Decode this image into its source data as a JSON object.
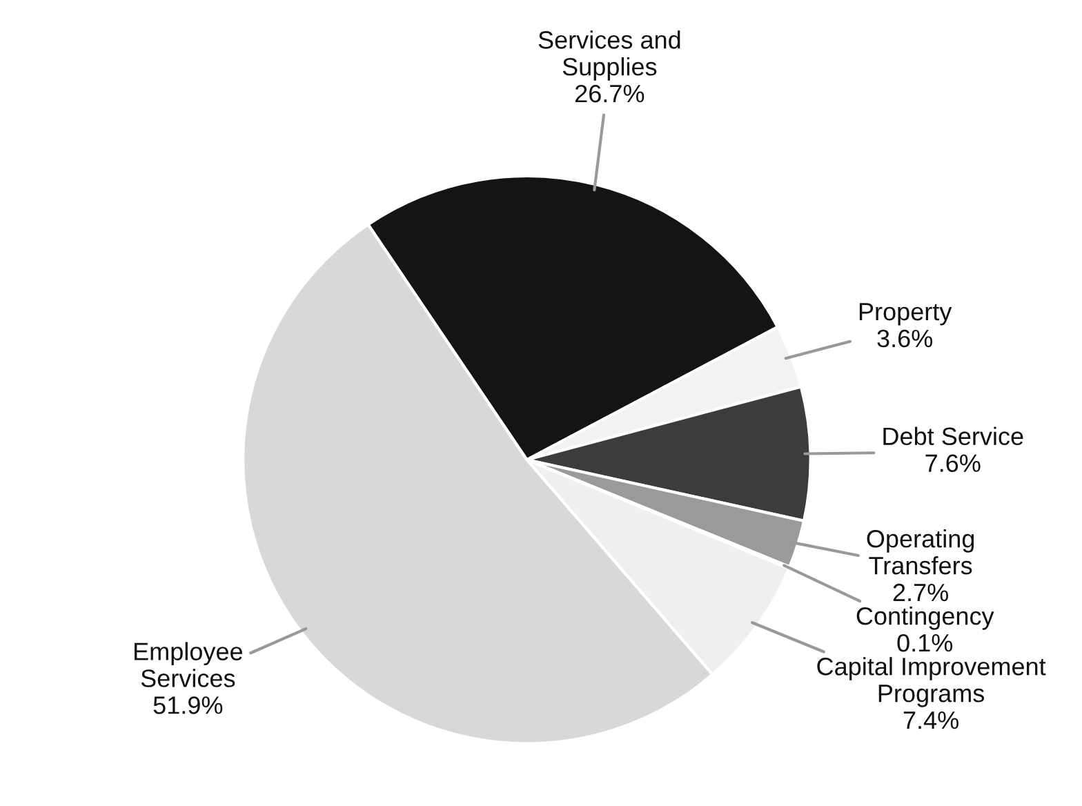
{
  "chart_data": {
    "type": "pie",
    "categories": [
      "Services and\nSupplies",
      "Property",
      "Debt Service",
      "Operating\nTransfers",
      "Contingency",
      "Capital Improvement\nPrograms",
      "Employee\nServices"
    ],
    "values": [
      26.7,
      3.6,
      7.6,
      2.7,
      0.1,
      7.4,
      51.9
    ],
    "colors": [
      "#141414",
      "#f2f2f2",
      "#3c3c3c",
      "#9a9a9a",
      "#ffffff",
      "#efefef",
      "#d8d8d8"
    ],
    "value_labels": [
      "26.7%",
      "3.6%",
      "7.6%",
      "2.7%",
      "0.1%",
      "7.4%",
      "51.9%"
    ]
  }
}
